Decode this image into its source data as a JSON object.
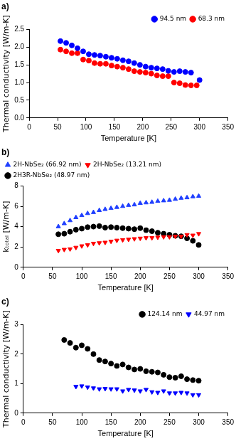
{
  "chart_data": [
    {
      "type": "scatter",
      "title": "a)",
      "x_label": "Temperature [K]",
      "y_label": "Thermal conductivity [W/m-K]",
      "xlim": [
        0,
        350
      ],
      "xticks": [
        0,
        50,
        100,
        150,
        200,
        250,
        300,
        350
      ],
      "ylim": [
        0,
        2.5
      ],
      "yticks": [
        {
          "value": 0,
          "label": "0.0"
        },
        {
          "value": 0.5,
          "label": "0.5"
        },
        {
          "value": 1,
          "label": "1.0"
        },
        {
          "value": 1.5,
          "label": "1.5"
        },
        {
          "value": 2,
          "label": "2.0"
        },
        {
          "value": 2.5,
          "label": "2.5"
        }
      ],
      "grid": false,
      "legend": "upper right",
      "series": [
        {
          "name": "94.5 nm",
          "color": "#0000ff",
          "marker": "circle",
          "x": [
            55,
            65,
            75,
            85,
            95,
            105,
            115,
            125,
            135,
            145,
            155,
            165,
            175,
            185,
            195,
            205,
            215,
            225,
            235,
            245,
            255,
            265,
            275,
            285,
            300
          ],
          "values": [
            2.17,
            2.12,
            2.05,
            1.97,
            1.88,
            1.8,
            1.78,
            1.76,
            1.73,
            1.7,
            1.67,
            1.63,
            1.6,
            1.55,
            1.5,
            1.45,
            1.42,
            1.4,
            1.38,
            1.33,
            1.3,
            1.32,
            1.3,
            1.28,
            1.07
          ]
        },
        {
          "name": "68.3 nm",
          "color": "#ff0000",
          "marker": "circle",
          "x": [
            55,
            65,
            75,
            85,
            95,
            105,
            115,
            125,
            135,
            145,
            155,
            165,
            175,
            185,
            195,
            205,
            215,
            225,
            235,
            245,
            255,
            265,
            275,
            285,
            295
          ],
          "values": [
            1.93,
            1.88,
            1.83,
            1.83,
            1.65,
            1.62,
            1.55,
            1.53,
            1.53,
            1.48,
            1.45,
            1.42,
            1.38,
            1.32,
            1.3,
            1.28,
            1.25,
            1.2,
            1.18,
            1.18,
            1.0,
            0.98,
            0.93,
            0.92,
            0.92
          ]
        }
      ]
    },
    {
      "type": "scatter",
      "title": "b)",
      "x_label": "Temperature [K]",
      "y_label": "kₜₒₜₐₗ [W/m-K]",
      "xlim": [
        0,
        350
      ],
      "xticks": [
        0,
        50,
        100,
        150,
        200,
        250,
        300,
        350
      ],
      "ylim": [
        0,
        8
      ],
      "yticks": [
        0,
        2,
        4,
        6,
        8
      ],
      "grid": false,
      "legend": "upper left",
      "series": [
        {
          "name": "2H-NbSe₂ (66.92 nm)",
          "color": "#1f3fff",
          "marker": "triangle_up",
          "x": [
            60,
            70,
            80,
            90,
            100,
            110,
            120,
            130,
            140,
            150,
            160,
            170,
            180,
            190,
            200,
            210,
            220,
            230,
            240,
            250,
            260,
            270,
            280,
            290,
            300
          ],
          "values": [
            4.0,
            4.3,
            4.6,
            4.9,
            5.1,
            5.3,
            5.4,
            5.6,
            5.7,
            5.8,
            5.9,
            6.0,
            6.1,
            6.15,
            6.3,
            6.35,
            6.4,
            6.5,
            6.55,
            6.6,
            6.7,
            6.8,
            6.85,
            6.95,
            7.0
          ]
        },
        {
          "name": "2H-NbSe₂ (13.21 nm)",
          "color": "#ff0000",
          "marker": "triangle_down",
          "x": [
            60,
            70,
            80,
            90,
            100,
            110,
            120,
            130,
            140,
            150,
            160,
            170,
            180,
            190,
            200,
            210,
            220,
            230,
            240,
            250,
            260,
            270,
            280,
            290,
            300
          ],
          "values": [
            1.65,
            1.75,
            1.8,
            1.95,
            2.1,
            2.2,
            2.35,
            2.4,
            2.45,
            2.55,
            2.65,
            2.7,
            2.75,
            2.8,
            2.85,
            2.9,
            2.9,
            2.95,
            3.0,
            3.0,
            3.05,
            3.05,
            3.2,
            3.15,
            3.3
          ]
        },
        {
          "name": "2H3R-NbSe₂ (48.97 nm)",
          "color": "#000000",
          "marker": "circle",
          "x": [
            60,
            70,
            80,
            90,
            100,
            110,
            120,
            130,
            140,
            150,
            160,
            170,
            180,
            190,
            200,
            210,
            220,
            230,
            240,
            250,
            260,
            270,
            280,
            290,
            300
          ],
          "values": [
            3.25,
            3.3,
            3.5,
            3.7,
            3.8,
            3.95,
            4.0,
            4.05,
            3.9,
            3.95,
            3.9,
            3.85,
            3.8,
            3.75,
            3.85,
            3.65,
            3.55,
            3.4,
            3.3,
            3.2,
            3.1,
            3.05,
            2.85,
            2.6,
            2.2
          ]
        }
      ]
    },
    {
      "type": "scatter",
      "title": "c)",
      "x_label": "Temperature [K]",
      "y_label": "Thermal conductivity [W/m-K]",
      "xlim": [
        0,
        350
      ],
      "xticks": [
        0,
        50,
        100,
        150,
        200,
        250,
        300,
        350
      ],
      "ylim": [
        0,
        3
      ],
      "yticks": [
        0,
        1,
        2,
        3
      ],
      "grid": false,
      "legend": "upper right",
      "series": [
        {
          "name": "124.14 nm",
          "color": "#000000",
          "marker": "circle",
          "x": [
            70,
            80,
            90,
            100,
            110,
            120,
            130,
            140,
            150,
            160,
            170,
            180,
            190,
            200,
            210,
            220,
            230,
            240,
            250,
            260,
            270,
            280,
            290,
            300
          ],
          "values": [
            2.48,
            2.38,
            2.22,
            2.3,
            2.18,
            2.0,
            1.8,
            1.75,
            1.68,
            1.6,
            1.65,
            1.55,
            1.48,
            1.5,
            1.42,
            1.4,
            1.38,
            1.3,
            1.22,
            1.2,
            1.25,
            1.15,
            1.12,
            1.1
          ]
        },
        {
          "name": "44.97 nm",
          "color": "#0000ff",
          "marker": "triangle_down",
          "x": [
            90,
            100,
            110,
            120,
            130,
            140,
            150,
            160,
            170,
            180,
            190,
            200,
            210,
            220,
            230,
            240,
            250,
            260,
            270,
            280,
            290,
            300
          ],
          "values": [
            0.9,
            0.92,
            0.88,
            0.85,
            0.82,
            0.83,
            0.82,
            0.82,
            0.75,
            0.8,
            0.78,
            0.75,
            0.8,
            0.72,
            0.7,
            0.75,
            0.68,
            0.68,
            0.7,
            0.68,
            0.62,
            0.62
          ]
        }
      ]
    }
  ]
}
